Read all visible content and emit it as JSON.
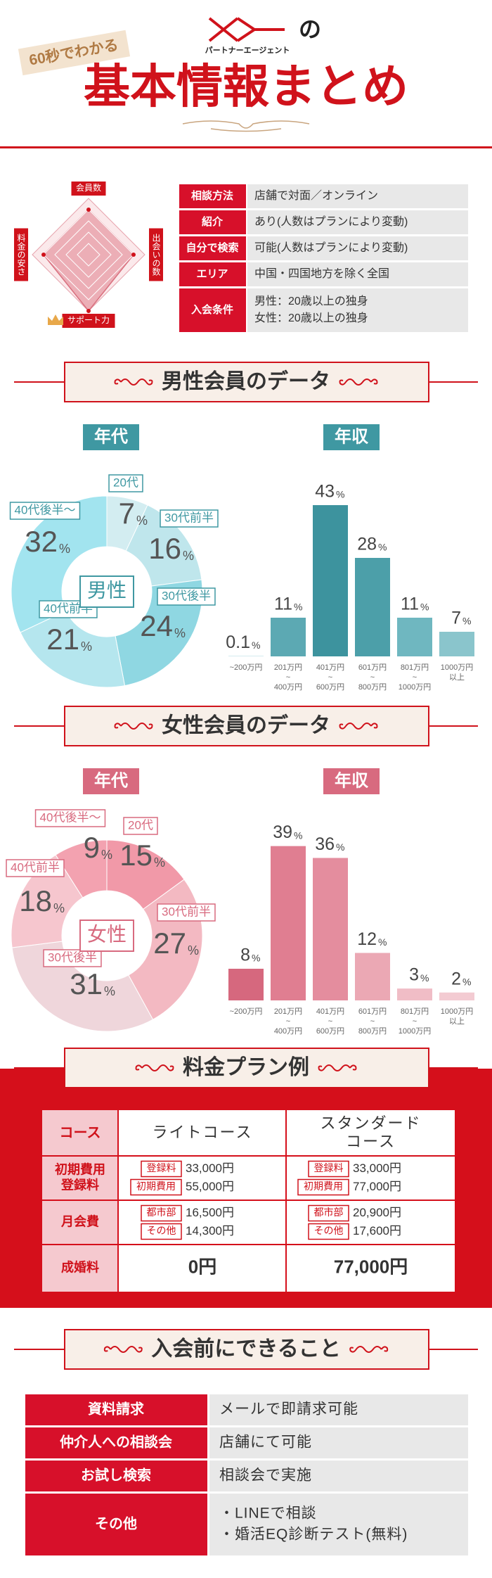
{
  "header": {
    "tag": "60秒でわかる",
    "no": "の",
    "brand": "パートナーエージェント",
    "title": "基本情報まとめ"
  },
  "radar": {
    "axes": [
      "会員数",
      "出会いの数",
      "サポート力",
      "料金の安さ"
    ],
    "values": [
      4,
      4,
      5,
      4
    ],
    "max": 5
  },
  "info": {
    "rows": [
      {
        "label": "相談方法",
        "lines": [
          "店舗で対面／オンライン"
        ]
      },
      {
        "label": "紹介",
        "lines": [
          "あり(人数はプランにより変動)"
        ]
      },
      {
        "label": "自分で検索",
        "lines": [
          "可能(人数はプランにより変動)"
        ]
      },
      {
        "label": "エリア",
        "lines": [
          "中国・四国地方を除く全国"
        ]
      },
      {
        "label": "入会条件",
        "lines": [
          "男性：20歳以上の独身",
          "女性：20歳以上の独身"
        ]
      }
    ]
  },
  "male": {
    "heading": "男性会員のデータ",
    "center": "男性",
    "age": {
      "type": "donut",
      "title": "年代",
      "categories": [
        "20代",
        "30代前半",
        "30代後半",
        "40代前半",
        "40代後半〜"
      ],
      "values": [
        7,
        16,
        24,
        21,
        32
      ],
      "colors": [
        "#d3edf1",
        "#bfe6ec",
        "#8fd7e2",
        "#b5e6ee",
        "#a2e4ef"
      ],
      "unit": "%"
    },
    "income": {
      "type": "bar",
      "title": "年収",
      "categories": [
        [
          "~200万円"
        ],
        [
          "201万円",
          "~",
          "400万円"
        ],
        [
          "401万円",
          "~",
          "600万円"
        ],
        [
          "601万円",
          "~",
          "800万円"
        ],
        [
          "801万円",
          "~",
          "1000万円"
        ],
        [
          "1000万円",
          "以上"
        ]
      ],
      "values": [
        0.1,
        11,
        43,
        28,
        11,
        7
      ],
      "colors": [
        "#a9d7dc",
        "#5ca9b3",
        "#3d939e",
        "#4c9fa9",
        "#6fb7c0",
        "#8ac5cc"
      ],
      "unit": "%",
      "ylim": [
        0,
        45
      ]
    }
  },
  "female": {
    "heading": "女性会員のデータ",
    "center": "女性",
    "age": {
      "type": "donut",
      "title": "年代",
      "categories": [
        "20代",
        "30代前半",
        "30代後半",
        "40代前半",
        "40代後半〜"
      ],
      "values": [
        15,
        27,
        31,
        18,
        9
      ],
      "colors": [
        "#f199a8",
        "#f3b9c2",
        "#efd6db",
        "#f6c6ce",
        "#f3a2b0"
      ],
      "unit": "%"
    },
    "income": {
      "type": "bar",
      "title": "年収",
      "categories": [
        [
          "~200万円"
        ],
        [
          "201万円",
          "~",
          "400万円"
        ],
        [
          "401万円",
          "~",
          "600万円"
        ],
        [
          "601万円",
          "~",
          "800万円"
        ],
        [
          "801万円",
          "~",
          "1000万円"
        ],
        [
          "1000万円",
          "以上"
        ]
      ],
      "values": [
        8,
        39,
        36,
        12,
        3,
        2
      ],
      "colors": [
        "#d6687e",
        "#e07e91",
        "#e48d9e",
        "#eba8b4",
        "#f0bdc6",
        "#f3cbd2"
      ],
      "unit": "%",
      "ylim": [
        0,
        40
      ]
    }
  },
  "price": {
    "heading": "料金プラン例",
    "corner": "コース",
    "plans": [
      [
        "ライトコース"
      ],
      [
        "スタンダード",
        "コース"
      ]
    ],
    "rows": [
      {
        "label": [
          "初期費用",
          "登録料"
        ],
        "cells": [
          [
            [
              "登録料",
              "33,000円"
            ],
            [
              "初期費用",
              "55,000円"
            ]
          ],
          [
            [
              "登録料",
              "33,000円"
            ],
            [
              "初期費用",
              "77,000円"
            ]
          ]
        ]
      },
      {
        "label": [
          "月会費"
        ],
        "cells": [
          [
            [
              "都市部",
              "16,500円"
            ],
            [
              "その他",
              "14,300円"
            ]
          ],
          [
            [
              "都市部",
              "20,900円"
            ],
            [
              "その他",
              "17,600円"
            ]
          ]
        ]
      },
      {
        "label": [
          "成婚料"
        ],
        "cells": [
          [
            [
              "0円"
            ]
          ],
          [
            [
              "77,000円"
            ]
          ]
        ]
      }
    ]
  },
  "before": {
    "heading": "入会前にできること",
    "rows": [
      {
        "label": "資料請求",
        "lines": [
          "メールで即請求可能"
        ]
      },
      {
        "label": "仲介人への相談会",
        "lines": [
          "店舗にて可能"
        ]
      },
      {
        "label": "お試し検索",
        "lines": [
          "相談会で実施"
        ]
      },
      {
        "label": "その他",
        "lines": [
          "・LINEで相談",
          "・婚活EQ診断テスト(無料)"
        ]
      }
    ]
  }
}
